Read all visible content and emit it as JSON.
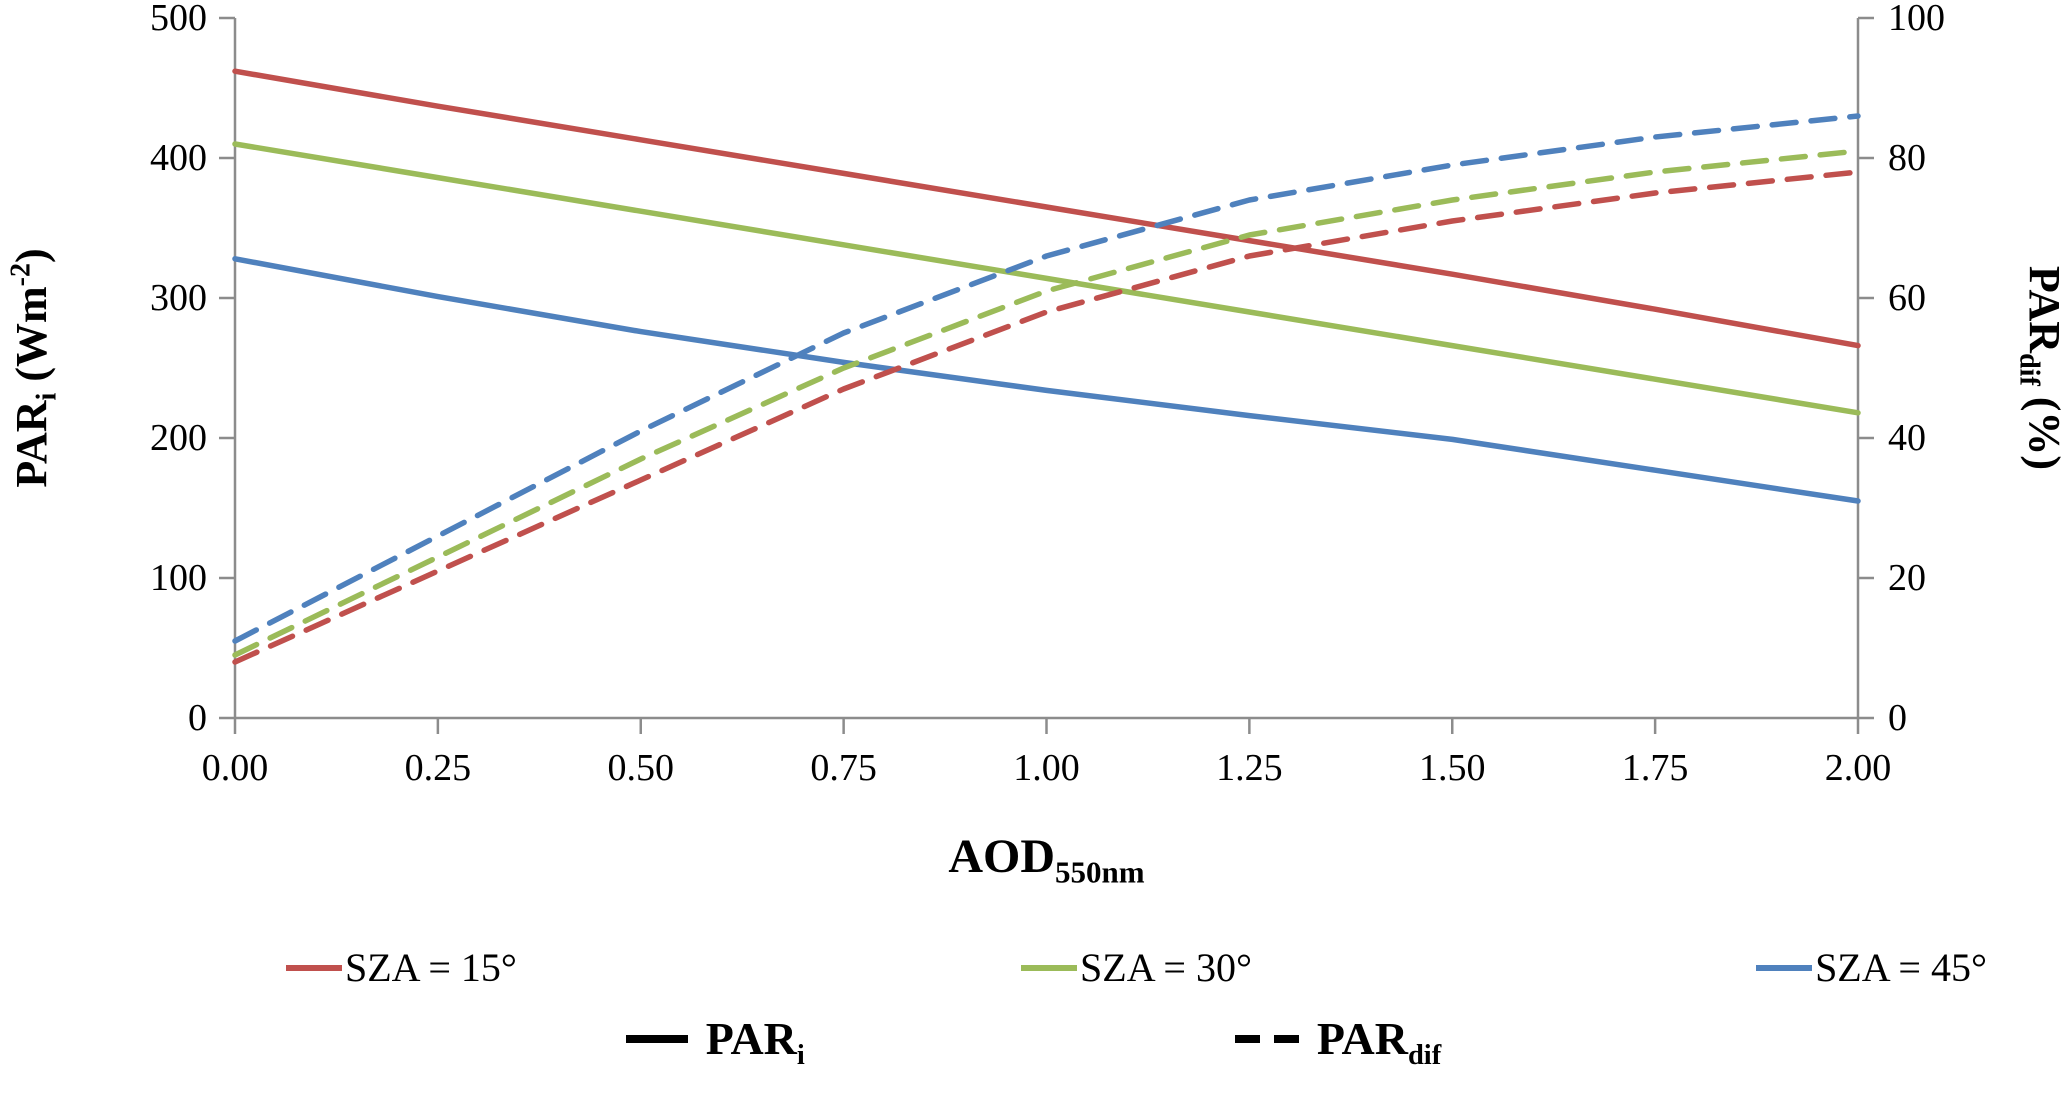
{
  "chart_data": {
    "type": "line",
    "title": "",
    "xlabel_runs": [
      {
        "t": "AOD"
      },
      {
        "t": "550nm",
        "sub": true
      }
    ],
    "ylabel_left_runs": [
      {
        "t": "PAR"
      },
      {
        "t": "i",
        "sub": true
      },
      {
        "t": " (Wm"
      },
      {
        "t": "-2",
        "sup": true
      },
      {
        "t": ")"
      }
    ],
    "ylabel_right_runs": [
      {
        "t": "PAR"
      },
      {
        "t": "dif",
        "sub": true
      },
      {
        "t": " (%)"
      }
    ],
    "xlim": [
      0,
      2
    ],
    "ylim_left": [
      0,
      500
    ],
    "ylim_right": [
      0,
      100
    ],
    "grid": false,
    "legend_position": "bottom",
    "axis_color": "#8c8c8c",
    "x_ticks": [
      {
        "v": 0,
        "label": "0.00"
      },
      {
        "v": 0.25,
        "label": "0.25"
      },
      {
        "v": 0.5,
        "label": "0.50"
      },
      {
        "v": 0.75,
        "label": "0.75"
      },
      {
        "v": 1,
        "label": "1.00"
      },
      {
        "v": 1.25,
        "label": "1.25"
      },
      {
        "v": 1.5,
        "label": "1.50"
      },
      {
        "v": 1.75,
        "label": "1.75"
      },
      {
        "v": 2,
        "label": "2.00"
      }
    ],
    "left_ticks": [
      {
        "v": 0,
        "label": "0"
      },
      {
        "v": 100,
        "label": "100"
      },
      {
        "v": 200,
        "label": "200"
      },
      {
        "v": 300,
        "label": "300"
      },
      {
        "v": 400,
        "label": "400"
      },
      {
        "v": 500,
        "label": "500"
      }
    ],
    "right_ticks": [
      {
        "v": 0,
        "label": "0"
      },
      {
        "v": 20,
        "label": "20"
      },
      {
        "v": 40,
        "label": "40"
      },
      {
        "v": 60,
        "label": "60"
      },
      {
        "v": 80,
        "label": "80"
      },
      {
        "v": 100,
        "label": "100"
      }
    ],
    "x": [
      0,
      0.25,
      0.5,
      0.75,
      1.0,
      1.25,
      1.5,
      1.75,
      2.0
    ],
    "series": [
      {
        "name": "PARi SZA=15",
        "axis": "left",
        "style": "solid",
        "color": "#C0504D",
        "values": [
          462,
          437,
          413,
          389,
          365,
          341,
          317,
          292,
          266
        ]
      },
      {
        "name": "PARi SZA=30",
        "axis": "left",
        "style": "solid",
        "color": "#9BBB59",
        "values": [
          410,
          386,
          362,
          338,
          314,
          290,
          266,
          242,
          218
        ]
      },
      {
        "name": "PARi SZA=45",
        "axis": "left",
        "style": "solid",
        "color": "#4F81BD",
        "values": [
          328,
          301,
          276,
          254,
          234,
          216,
          199,
          177,
          155
        ]
      },
      {
        "name": "PARdif SZA=15",
        "axis": "right",
        "style": "dashed",
        "color": "#C0504D",
        "values": [
          8,
          21,
          34,
          47,
          58,
          66,
          71,
          75,
          78
        ]
      },
      {
        "name": "PARdif SZA=30",
        "axis": "right",
        "style": "dashed",
        "color": "#9BBB59",
        "values": [
          9,
          23,
          37,
          50,
          61,
          69,
          74,
          78,
          81
        ]
      },
      {
        "name": "PARdif SZA=45",
        "axis": "right",
        "style": "dashed",
        "color": "#4F81BD",
        "values": [
          11,
          26,
          41,
          55,
          66,
          74,
          79,
          83,
          86
        ]
      }
    ]
  },
  "legend": {
    "sza_items": [
      {
        "label": "SZA = 15°",
        "color": "#C0504D"
      },
      {
        "label": "SZA = 30°",
        "color": "#9BBB59"
      },
      {
        "label": "SZA = 45°",
        "color": "#4F81BD"
      }
    ],
    "style_items": [
      {
        "runs": [
          {
            "t": "PAR"
          },
          {
            "t": "i",
            "sub": true
          }
        ],
        "style": "solid"
      },
      {
        "runs": [
          {
            "t": "PAR"
          },
          {
            "t": "dif",
            "sub": true
          }
        ],
        "style": "dashed"
      }
    ]
  },
  "colors": {
    "red": "#C0504D",
    "green": "#9BBB59",
    "blue": "#4F81BD",
    "axis": "#8c8c8c",
    "text": "#000000"
  }
}
